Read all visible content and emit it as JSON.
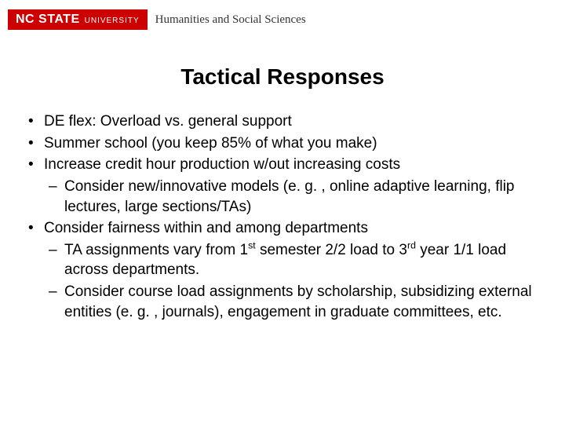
{
  "header": {
    "logo_main": "NC STATE",
    "logo_sub": "UNIVERSITY",
    "department": "Humanities and Social Sciences",
    "logo_bg": "#cc0000",
    "logo_fg": "#ffffff"
  },
  "title": "Tactical Responses",
  "bullets": {
    "b1": "DE flex: Overload vs. general support",
    "b2": "Summer school (you keep 85% of what you make)",
    "b3": "Increase credit hour production w/out increasing costs",
    "b3_sub1": "Consider new/innovative models (e. g. , online adaptive learning, flip lectures, large sections/TAs)",
    "b4": "Consider fairness within and among departments",
    "b4_sub1_html": "TA assignments vary from 1<sup>st</sup> semester 2/2 load to 3<sup>rd</sup> year 1/1 load across departments.",
    "b4_sub2": "Consider course load assignments by scholarship, subsidizing external entities (e. g. , journals), engagement in graduate committees, etc."
  },
  "style": {
    "title_fontsize": 28,
    "body_fontsize": 19,
    "text_color": "#000000",
    "background": "#ffffff"
  }
}
